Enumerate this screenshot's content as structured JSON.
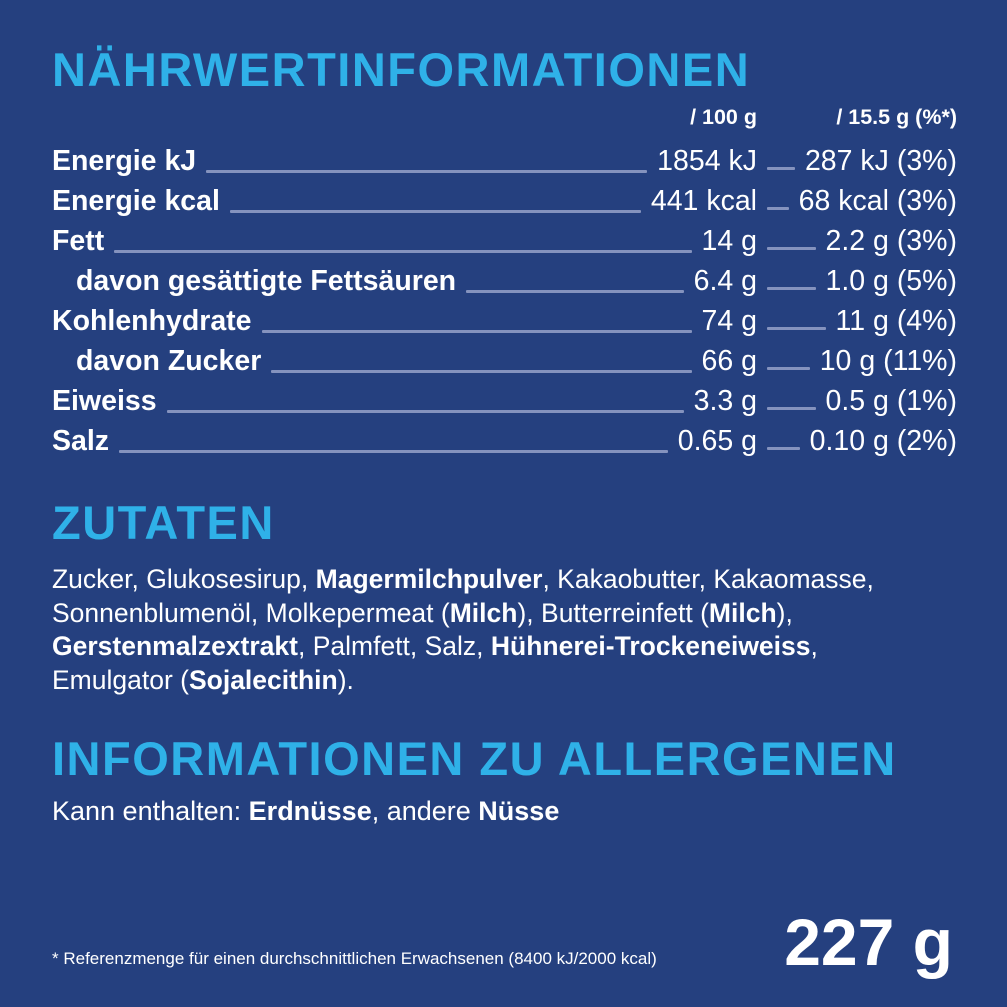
{
  "colors": {
    "background": "#25407F",
    "heading": "#2FB1E8",
    "text": "#FFFFFF",
    "leader": "#8593BE"
  },
  "nutrition": {
    "title": "NÄHRWERTINFORMATIONEN",
    "col_headers": [
      "/ 100 g",
      "/ 15.5 g (%*)"
    ],
    "rows": [
      {
        "label": "Energie kJ",
        "indent": false,
        "per100": "1854 kJ",
        "portion": "287 kJ (3%)"
      },
      {
        "label": "Energie kcal",
        "indent": false,
        "per100": "441 kcal",
        "portion": "68 kcal (3%)"
      },
      {
        "label": "Fett",
        "indent": false,
        "per100": "14 g",
        "portion": "2.2 g (3%)"
      },
      {
        "label": "davon gesättigte Fettsäuren",
        "indent": true,
        "per100": "6.4 g",
        "portion": "1.0 g (5%)"
      },
      {
        "label": "Kohlenhydrate",
        "indent": false,
        "per100": "74 g",
        "portion": "11 g (4%)"
      },
      {
        "label": "davon Zucker",
        "indent": true,
        "per100": "66 g",
        "portion": "10 g (11%)"
      },
      {
        "label": "Eiweiss",
        "indent": false,
        "per100": "3.3 g",
        "portion": "0.5 g (1%)"
      },
      {
        "label": "Salz",
        "indent": false,
        "per100": "0.65 g",
        "portion": "0.10 g (2%)"
      }
    ]
  },
  "ingredients": {
    "title": "ZUTATEN",
    "segments": [
      {
        "text": "Zucker, Glukosesirup, ",
        "bold": false
      },
      {
        "text": "Magermilchpulver",
        "bold": true
      },
      {
        "text": ", Kakaobutter, Kakaomasse, Sonnenblumenöl, Molkepermeat (",
        "bold": false
      },
      {
        "text": "Milch",
        "bold": true
      },
      {
        "text": "), Butterreinfett (",
        "bold": false
      },
      {
        "text": "Milch",
        "bold": true
      },
      {
        "text": "), ",
        "bold": false
      },
      {
        "text": "Gerstenmalzextrakt",
        "bold": true
      },
      {
        "text": ", Palmfett, Salz, ",
        "bold": false
      },
      {
        "text": "Hühnerei-Trockeneiweiss",
        "bold": true
      },
      {
        "text": ", Emulgator (",
        "bold": false
      },
      {
        "text": "Sojalecithin",
        "bold": true
      },
      {
        "text": ").",
        "bold": false
      }
    ]
  },
  "allergens": {
    "title": "INFORMATIONEN ZU ALLERGENEN",
    "segments": [
      {
        "text": "Kann enthalten: ",
        "bold": false
      },
      {
        "text": "Erdnüsse",
        "bold": true
      },
      {
        "text": ", andere ",
        "bold": false
      },
      {
        "text": "Nüsse",
        "bold": true
      }
    ]
  },
  "footer": {
    "footnote": "* Referenzmenge für einen durchschnittlichen Erwachsenen (8400 kJ/2000 kcal)",
    "net_weight": "227 g"
  }
}
